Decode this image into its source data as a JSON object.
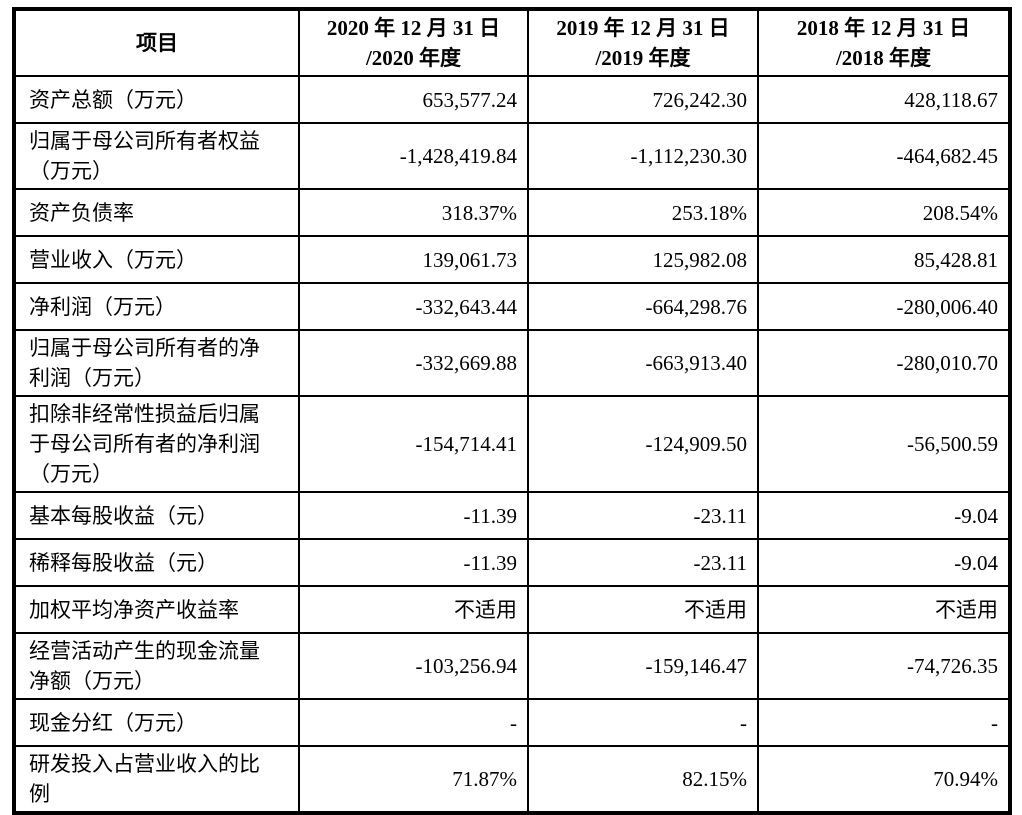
{
  "table": {
    "header": {
      "item": "项目",
      "periods": [
        {
          "line1": "2020 年 12 月 31 日",
          "line2": "/2020 年度"
        },
        {
          "line1": "2019 年 12 月 31 日",
          "line2": "/2019 年度"
        },
        {
          "line1": "2018 年 12 月 31 日",
          "line2": "/2018 年度"
        }
      ]
    },
    "rows": [
      {
        "label": "资产总额（万元）",
        "lines": [
          "资产总额（万元）"
        ],
        "values": [
          "653,577.24",
          "726,242.30",
          "428,118.67"
        ]
      },
      {
        "label": "归属于母公司所有者权益（万元）",
        "lines": [
          "归属于母公司所有者权益",
          "（万元）"
        ],
        "values": [
          "-1,428,419.84",
          "-1,112,230.30",
          "-464,682.45"
        ]
      },
      {
        "label": "资产负债率",
        "lines": [
          "资产负债率"
        ],
        "values": [
          "318.37%",
          "253.18%",
          "208.54%"
        ]
      },
      {
        "label": "营业收入（万元）",
        "lines": [
          "营业收入（万元）"
        ],
        "values": [
          "139,061.73",
          "125,982.08",
          "85,428.81"
        ]
      },
      {
        "label": "净利润（万元）",
        "lines": [
          "净利润（万元）"
        ],
        "values": [
          "-332,643.44",
          "-664,298.76",
          "-280,006.40"
        ]
      },
      {
        "label": "归属于母公司所有者的净利润（万元）",
        "lines": [
          "归属于母公司所有者的净",
          "利润（万元）"
        ],
        "values": [
          "-332,669.88",
          "-663,913.40",
          "-280,010.70"
        ]
      },
      {
        "label": "扣除非经常性损益后归属于母公司所有者的净利润（万元）",
        "lines": [
          "扣除非经常性损益后归属",
          "于母公司所有者的净利润",
          "（万元）"
        ],
        "values": [
          "-154,714.41",
          "-124,909.50",
          "-56,500.59"
        ]
      },
      {
        "label": "基本每股收益（元）",
        "lines": [
          "基本每股收益（元）"
        ],
        "values": [
          "-11.39",
          "-23.11",
          "-9.04"
        ]
      },
      {
        "label": "稀释每股收益（元）",
        "lines": [
          "稀释每股收益（元）"
        ],
        "values": [
          "-11.39",
          "-23.11",
          "-9.04"
        ]
      },
      {
        "label": "加权平均净资产收益率",
        "lines": [
          "加权平均净资产收益率"
        ],
        "values": [
          "不适用",
          "不适用",
          "不适用"
        ]
      },
      {
        "label": "经营活动产生的现金流量净额（万元）",
        "lines": [
          "经营活动产生的现金流量",
          "净额（万元）"
        ],
        "values": [
          "-103,256.94",
          "-159,146.47",
          "-74,726.35"
        ]
      },
      {
        "label": "现金分红（万元）",
        "lines": [
          "现金分红（万元）"
        ],
        "values": [
          "-",
          "-",
          "-"
        ]
      },
      {
        "label": "研发投入占营业收入的比例",
        "lines": [
          "研发投入占营业收入的比",
          "例"
        ],
        "values": [
          "71.87%",
          "82.15%",
          "70.94%"
        ]
      }
    ],
    "colors": {
      "border": "#000000",
      "text": "#000000",
      "background": "#ffffff"
    }
  }
}
